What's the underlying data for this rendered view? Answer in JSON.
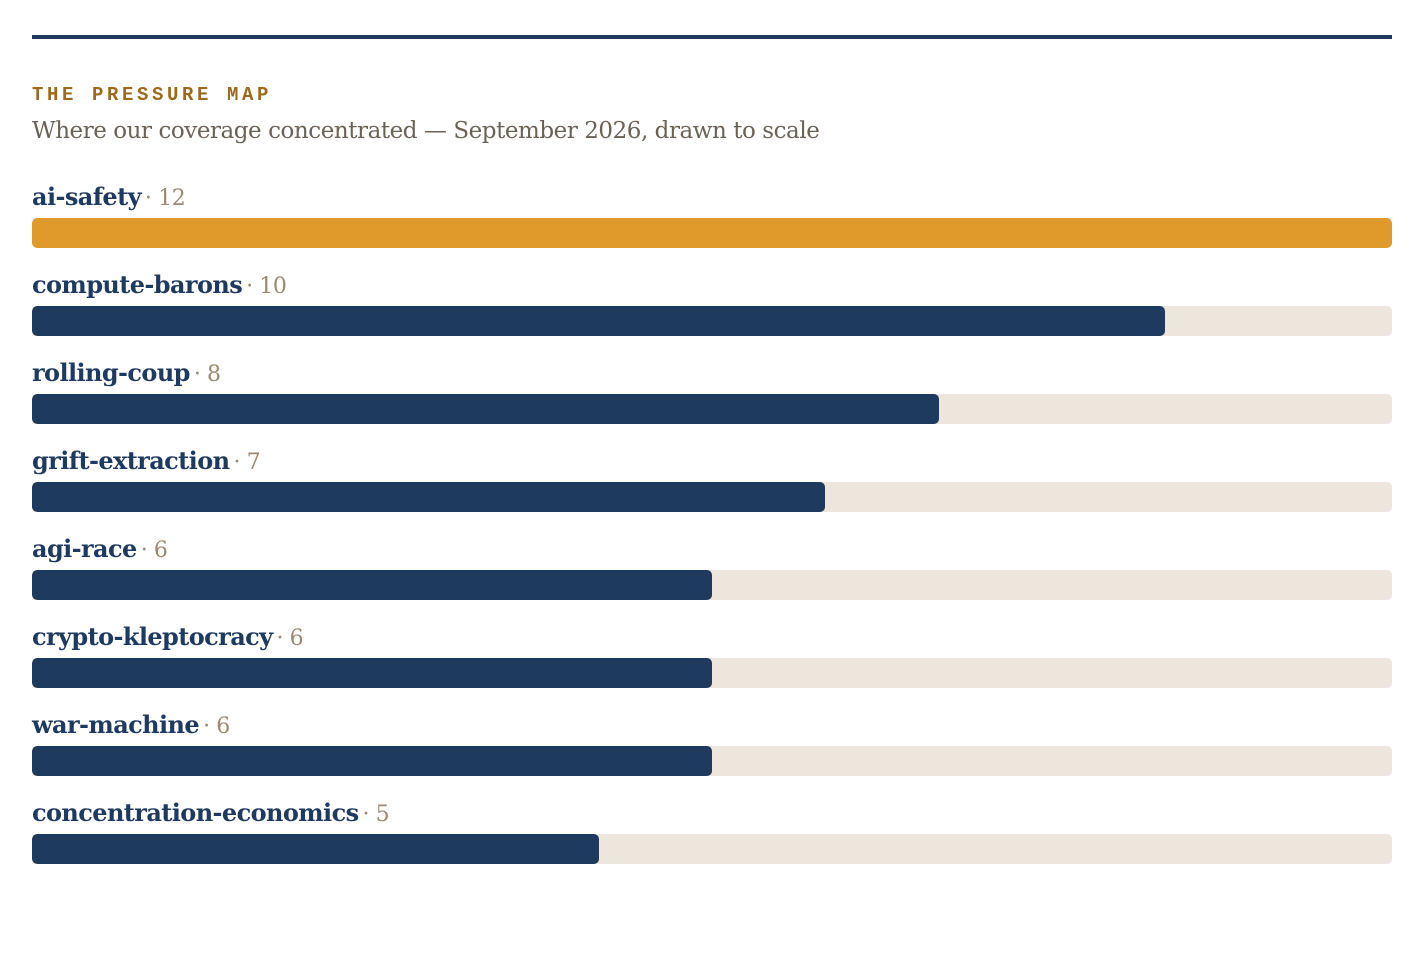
{
  "header": {
    "kicker": "THE PRESSURE MAP",
    "subtitle": "Where our coverage concentrated — September 2026, drawn to scale"
  },
  "colors": {
    "accent": "#e0992b",
    "bar": "#1f3a5f",
    "track": "#ede6dc",
    "kicker": "#9c6a1c",
    "rule": "#1f3a5f"
  },
  "chart_data": {
    "type": "bar",
    "orientation": "horizontal",
    "title": "THE PRESSURE MAP",
    "subtitle": "Where our coverage concentrated — September 2026, drawn to scale",
    "categories": [
      "ai-safety",
      "compute-barons",
      "rolling-coup",
      "grift-extraction",
      "agi-race",
      "crypto-kleptocracy",
      "war-machine",
      "concentration-economics"
    ],
    "values": [
      12,
      10,
      8,
      7,
      6,
      6,
      6,
      5
    ],
    "value_labels": [
      "· 12",
      "· 10",
      "· 8",
      "· 7",
      "· 6",
      "· 6",
      "· 6",
      "· 5"
    ],
    "xlim": [
      0,
      12
    ],
    "highlight_index": 0,
    "grid": false,
    "legend": "none"
  }
}
